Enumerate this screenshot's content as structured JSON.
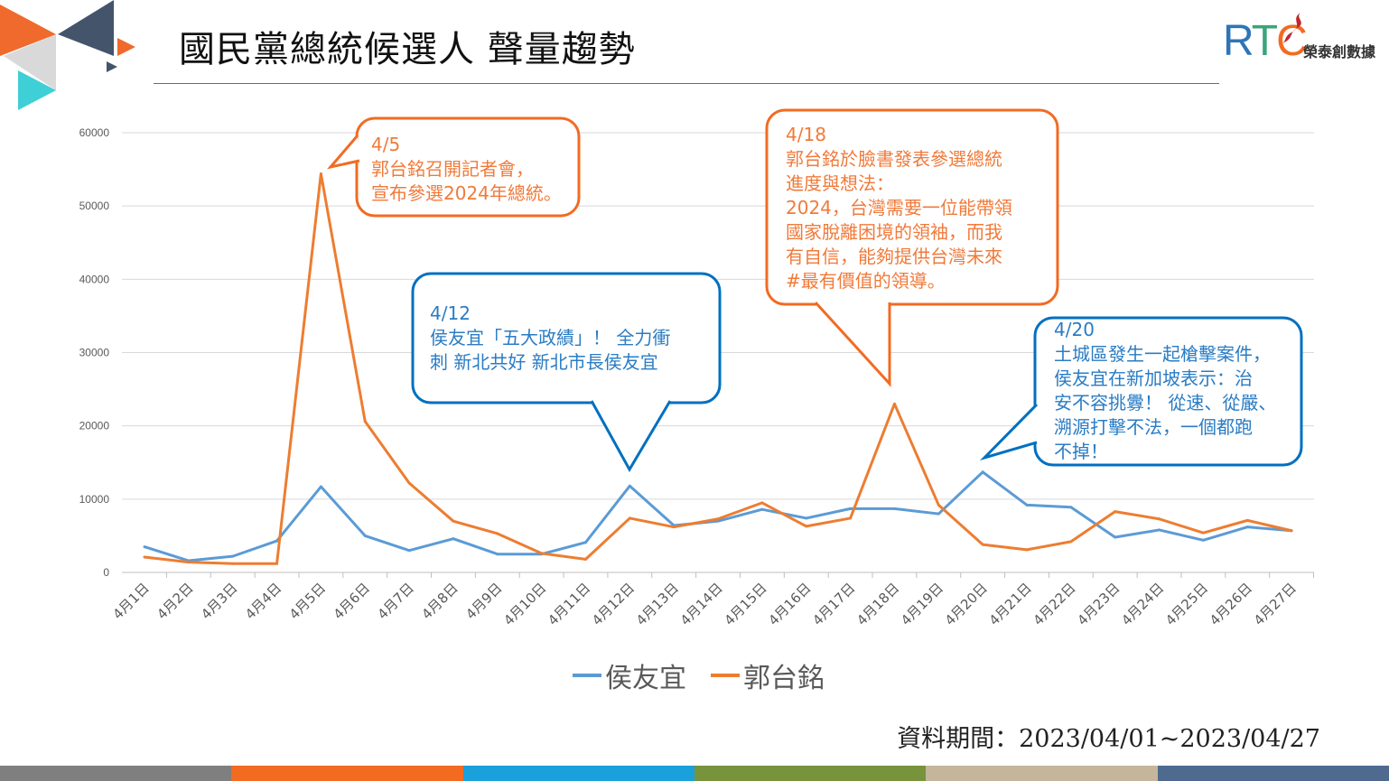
{
  "header": {
    "title": "國民黨總統候選人 聲量趨勢",
    "logo_text": "RTC",
    "logo_subtext": "榮泰創數據"
  },
  "colors": {
    "series_hou": "#5b9bd5",
    "series_guo": "#ed7d31",
    "callout_orange": "#f26b21",
    "callout_blue": "#0070c0",
    "bottom_bar": [
      "#7f7f7f",
      "#f26b21",
      "#1aa0db",
      "#77933c",
      "#c4b59b",
      "#4f6a8f"
    ]
  },
  "callouts": [
    {
      "id": "c45",
      "color": "orange",
      "lines": [
        "4/5",
        "郭台銘召開記者會，",
        "宣布參選2024年總統。"
      ]
    },
    {
      "id": "c412",
      "color": "blue",
      "lines": [
        "4/12",
        "侯友宜「五大政績」！ 全力衝",
        "刺 新北共好 新北市長侯友宜"
      ]
    },
    {
      "id": "c418",
      "color": "orange",
      "lines": [
        "4/18",
        "郭台銘於臉書發表參選總統",
        "進度與想法：",
        "2024，台灣需要一位能帶領",
        "國家脫離困境的領袖，而我",
        "有自信，能夠提供台灣未來",
        "#最有價值的領導。"
      ]
    },
    {
      "id": "c420",
      "color": "blue",
      "lines": [
        "4/20",
        "土城區發生一起槍擊案件，",
        "侯友宜在新加坡表示：治",
        "安不容挑釁！ 從速、從嚴、",
        "溯源打擊不法，一個都跑",
        "不掉！"
      ]
    }
  ],
  "footer": {
    "period": "資料期間：2023/04/01~2023/04/27"
  },
  "chart_data": {
    "type": "line",
    "title": "國民黨總統候選人 聲量趨勢",
    "xlabel": "",
    "ylabel": "",
    "ylim": [
      0,
      60000
    ],
    "yticks": [
      "0",
      "10000",
      "20000",
      "30000",
      "40000",
      "50000",
      "60000"
    ],
    "grid": true,
    "legend_position": "bottom",
    "categories": [
      "4月1日",
      "4月2日",
      "4月3日",
      "4月4日",
      "4月5日",
      "4月6日",
      "4月7日",
      "4月8日",
      "4月9日",
      "4月10日",
      "4月11日",
      "4月12日",
      "4月13日",
      "4月14日",
      "4月15日",
      "4月16日",
      "4月17日",
      "4月18日",
      "4月19日",
      "4月20日",
      "4月21日",
      "4月22日",
      "4月23日",
      "4月24日",
      "4月25日",
      "4月26日",
      "4月27日"
    ],
    "series": [
      {
        "name": "侯友宜",
        "values": [
          3500,
          1600,
          2200,
          4300,
          11700,
          5000,
          3000,
          4600,
          2500,
          2500,
          4100,
          11800,
          6400,
          7000,
          8600,
          7400,
          8700,
          8700,
          8000,
          13700,
          9200,
          8900,
          4800,
          5800,
          4400,
          6200,
          5700
        ]
      },
      {
        "name": "郭台銘",
        "values": [
          2100,
          1400,
          1200,
          1200,
          54400,
          20600,
          12200,
          7000,
          5300,
          2600,
          1800,
          7400,
          6200,
          7300,
          9500,
          6300,
          7400,
          23000,
          9200,
          3800,
          3100,
          4200,
          8300,
          7300,
          5400,
          7100,
          5700
        ]
      }
    ]
  }
}
